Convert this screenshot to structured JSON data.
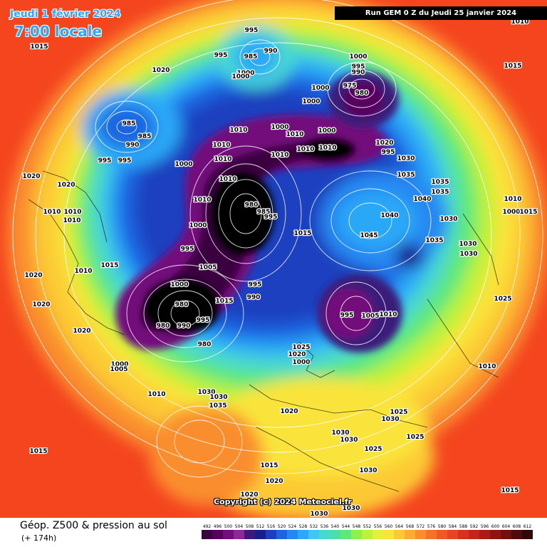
{
  "header": {
    "date": "Jeudi 1 février 2024",
    "local_time": "7:00 locale",
    "run_info": "Run GEM 0 Z du Jeudi 25 janvier 2024"
  },
  "copyright": "Copyright (c) 2024 Meteociel.fr",
  "footer": {
    "title": "Géop. Z500 & pression au sol",
    "subtitle": "(+ 174h)"
  },
  "legend": {
    "values": [
      "492",
      "496",
      "500",
      "504",
      "508",
      "512",
      "516",
      "520",
      "524",
      "528",
      "532",
      "536",
      "540",
      "544",
      "548",
      "552",
      "556",
      "560",
      "564",
      "568",
      "572",
      "576",
      "580",
      "584",
      "588",
      "592",
      "596",
      "600",
      "604",
      "608",
      "612"
    ],
    "colors": [
      "#3a0040",
      "#58005e",
      "#730c7c",
      "#8a2a98",
      "#3a1a7a",
      "#1a1e8c",
      "#1b3fbf",
      "#1f63e0",
      "#2588f2",
      "#2ba8f8",
      "#3fc6f2",
      "#48d8d2",
      "#4ce0a8",
      "#5fe87a",
      "#8cf04e",
      "#bcf23a",
      "#e4f03a",
      "#fae43a",
      "#fcc936",
      "#fcac32",
      "#fa8e2e",
      "#f6722a",
      "#f05826",
      "#e64422",
      "#d8321e",
      "#c4261a",
      "#ac1c16",
      "#8e1412",
      "#700e10",
      "#500a0a",
      "#300808"
    ]
  },
  "map": {
    "colors": {
      "hot": "#f4451f",
      "orange": "#fa8e2e",
      "yellow": "#fae43a",
      "green": "#5fe87a",
      "cyan": "#3fc6f2",
      "blue": "#1f63e0",
      "navy": "#1a1e8c",
      "purple": "#730c7c",
      "black": "#000000"
    },
    "pressure_labels": [
      "1015",
      "1020",
      "995",
      "985",
      "990",
      "1000",
      "1005",
      "975",
      "980",
      "1010",
      "1030",
      "1035",
      "1040",
      "1045",
      "1025"
    ]
  }
}
